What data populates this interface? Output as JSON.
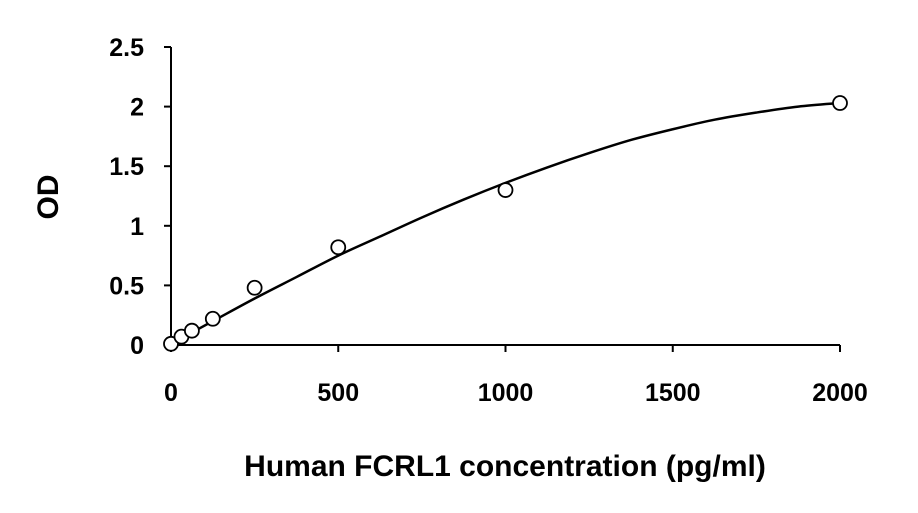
{
  "chart_data": {
    "type": "scatter",
    "title": "",
    "xlabel": "Human FCRL1 concentration (pg/ml)",
    "ylabel": "OD",
    "xlim": [
      0,
      2000
    ],
    "ylim": [
      0,
      2.5
    ],
    "xticks": [
      "0",
      "500",
      "1000",
      "1500",
      "2000"
    ],
    "yticks": [
      "0",
      "0.5",
      "1",
      "1.5",
      "2",
      "2.5"
    ],
    "grid": false,
    "legend": "none",
    "series": [
      {
        "marker": "open-circle",
        "x": [
          0,
          31.25,
          62.5,
          125,
          250,
          500,
          1000,
          2000
        ],
        "y": [
          0.01,
          0.07,
          0.12,
          0.22,
          0.48,
          0.82,
          1.3,
          2.03
        ]
      }
    ],
    "fit_curve": {
      "type": "polynomial",
      "x": [
        0,
        125,
        250,
        375,
        500,
        625,
        750,
        875,
        1000,
        1125,
        1250,
        1375,
        1500,
        1625,
        1750,
        1875,
        2000
      ],
      "y": [
        0.01,
        0.2,
        0.39,
        0.57,
        0.75,
        0.91,
        1.07,
        1.22,
        1.36,
        1.49,
        1.61,
        1.72,
        1.81,
        1.89,
        1.95,
        2.0,
        2.03
      ]
    },
    "colors": {
      "axis": "#000000",
      "marker_stroke": "#000000",
      "marker_fill": "#ffffff",
      "curve": "#000000"
    }
  }
}
